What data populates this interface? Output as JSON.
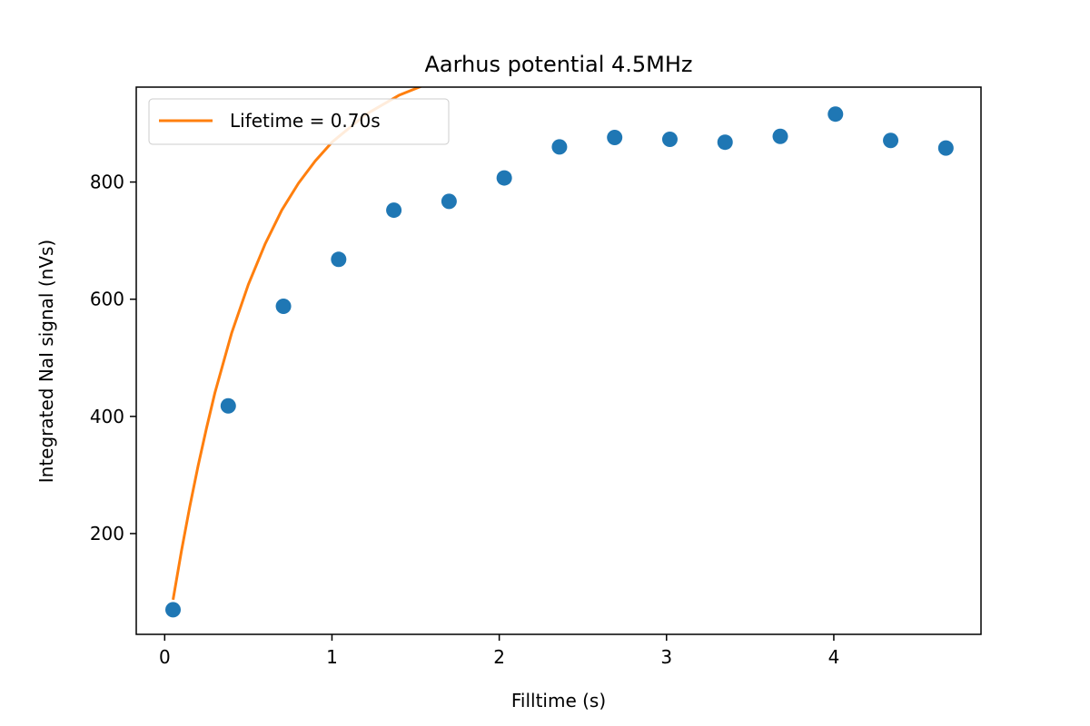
{
  "chart_data": {
    "type": "scatter",
    "title": "Aarhus potential 4.5MHz",
    "xlabel": "Filltime (s)",
    "ylabel": "Integrated NaI signal (nVs)",
    "xlim": [
      -0.17,
      4.88
    ],
    "ylim": [
      28,
      962
    ],
    "xticks": [
      0,
      1,
      2,
      3,
      4
    ],
    "yticks": [
      200,
      400,
      600,
      800
    ],
    "grid": false,
    "legend": {
      "placement": "top-left",
      "entries": [
        "Lifetime = 0.70s"
      ]
    },
    "series": [
      {
        "kind": "points",
        "color": "#1f77b4",
        "x": [
          0.05,
          0.38,
          0.71,
          1.04,
          1.37,
          1.7,
          2.03,
          2.36,
          2.69,
          3.02,
          3.35,
          3.68,
          4.01,
          4.34,
          4.67
        ],
        "y": [
          70,
          418,
          588,
          668,
          752,
          767,
          807,
          860,
          876,
          873,
          868,
          878,
          916,
          871,
          858
        ]
      },
      {
        "kind": "fit",
        "name": "Lifetime = 0.70s",
        "color": "#ff7f0e",
        "x": [
          0.05,
          0.1,
          0.15,
          0.2,
          0.25,
          0.3,
          0.4,
          0.5,
          0.6,
          0.7,
          0.8,
          0.9,
          1.0,
          1.2,
          1.4,
          1.6,
          1.8,
          2.0,
          2.3,
          2.6,
          3.0,
          3.5,
          4.0,
          4.5,
          4.67
        ],
        "y": [
          87,
          170,
          246,
          316,
          380,
          440,
          542,
          625,
          694,
          752,
          798,
          836,
          868,
          915,
          948,
          971,
          987,
          998,
          1008,
          1014,
          1018,
          1021,
          1022,
          1023,
          1023
        ]
      }
    ]
  }
}
